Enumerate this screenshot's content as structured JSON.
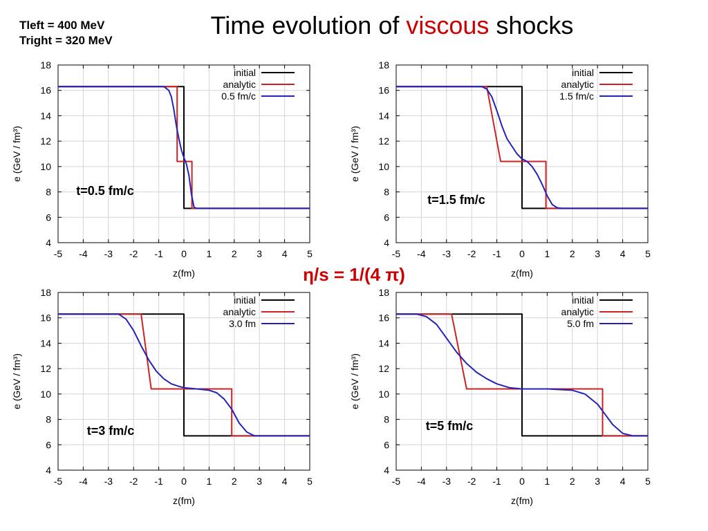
{
  "header": {
    "params": [
      "Tleft = 400 MeV",
      "Tright = 320 MeV"
    ],
    "title_prefix": "Time evolution of ",
    "title_highlight": "viscous",
    "title_suffix": " shocks",
    "ratio_label": "η/s = 1/(4 π)"
  },
  "colors": {
    "initial": "#000000",
    "analytic": "#cc2222",
    "simulation": "#2222bb",
    "highlight": "#cc0000"
  },
  "chart_data": [
    {
      "type": "line",
      "xlabel": "z(fm)",
      "ylabel": "e (GeV / fm³)",
      "xlim": [
        -5,
        5
      ],
      "ylim": [
        4,
        18
      ],
      "xticks": [
        -5,
        -4,
        -3,
        -2,
        -1,
        0,
        1,
        2,
        3,
        4,
        5
      ],
      "yticks": [
        4,
        6,
        8,
        10,
        12,
        14,
        16,
        18
      ],
      "annotation": "t=0.5 fm/c",
      "legend_position": "top-right",
      "series": [
        {
          "name": "initial",
          "x": [
            -5,
            0,
            0,
            5
          ],
          "y": [
            16.3,
            16.3,
            6.7,
            6.7
          ]
        },
        {
          "name": "analytic",
          "x": [
            -5,
            -0.27,
            -0.27,
            0.32,
            0.32,
            5
          ],
          "y": [
            16.3,
            16.3,
            10.4,
            10.4,
            6.7,
            6.7
          ]
        },
        {
          "name": "0.5 fm/c",
          "x": [
            -5,
            -0.8,
            -0.6,
            -0.5,
            -0.4,
            -0.3,
            -0.2,
            -0.1,
            0,
            0.1,
            0.2,
            0.3,
            0.4,
            0.5,
            5
          ],
          "y": [
            16.3,
            16.3,
            16.0,
            15.5,
            14.5,
            13.2,
            12.2,
            11.3,
            10.7,
            10.2,
            9.3,
            7.8,
            6.8,
            6.7,
            6.7
          ]
        }
      ]
    },
    {
      "type": "line",
      "xlabel": "z(fm)",
      "ylabel": "e (GeV / fm³)",
      "xlim": [
        -5,
        5
      ],
      "ylim": [
        4,
        18
      ],
      "xticks": [
        -5,
        -4,
        -3,
        -2,
        -1,
        0,
        1,
        2,
        3,
        4,
        5
      ],
      "yticks": [
        4,
        6,
        8,
        10,
        12,
        14,
        16,
        18
      ],
      "annotation": "t=1.5 fm/c",
      "legend_position": "top-right",
      "series": [
        {
          "name": "initial",
          "x": [
            -5,
            0,
            0,
            5
          ],
          "y": [
            16.3,
            16.3,
            6.7,
            6.7
          ]
        },
        {
          "name": "analytic",
          "x": [
            -5,
            -1.4,
            -0.85,
            0.95,
            0.95,
            5
          ],
          "y": [
            16.3,
            16.3,
            10.4,
            10.4,
            6.7,
            6.7
          ]
        },
        {
          "name": "1.5 fm/c",
          "x": [
            -5,
            -1.6,
            -1.4,
            -1.2,
            -1.0,
            -0.8,
            -0.6,
            -0.4,
            -0.2,
            0,
            0.2,
            0.4,
            0.6,
            0.8,
            1.0,
            1.2,
            1.4,
            1.6,
            5
          ],
          "y": [
            16.3,
            16.3,
            16.1,
            15.5,
            14.4,
            13.2,
            12.2,
            11.6,
            11.0,
            10.6,
            10.4,
            10.0,
            9.4,
            8.6,
            7.7,
            7.0,
            6.75,
            6.7,
            6.7
          ]
        }
      ]
    },
    {
      "type": "line",
      "xlabel": "z(fm)",
      "ylabel": "e (GeV / fm³)",
      "xlim": [
        -5,
        5
      ],
      "ylim": [
        4,
        18
      ],
      "xticks": [
        -5,
        -4,
        -3,
        -2,
        -1,
        0,
        1,
        2,
        3,
        4,
        5
      ],
      "yticks": [
        4,
        6,
        8,
        10,
        12,
        14,
        16,
        18
      ],
      "annotation": "t=3 fm/c",
      "legend_position": "top-right",
      "series": [
        {
          "name": "initial",
          "x": [
            -5,
            0,
            0,
            5
          ],
          "y": [
            16.3,
            16.3,
            6.7,
            6.7
          ]
        },
        {
          "name": "analytic",
          "x": [
            -5,
            -1.7,
            -1.3,
            1.9,
            1.9,
            5
          ],
          "y": [
            16.3,
            16.3,
            10.4,
            10.4,
            6.7,
            6.7
          ]
        },
        {
          "name": "3.0 fm",
          "x": [
            -5,
            -2.6,
            -2.3,
            -2.0,
            -1.7,
            -1.4,
            -1.1,
            -0.8,
            -0.5,
            -0.2,
            0,
            0.5,
            1.0,
            1.3,
            1.6,
            1.9,
            2.2,
            2.5,
            2.8,
            5
          ],
          "y": [
            16.3,
            16.3,
            15.9,
            15.0,
            13.8,
            12.7,
            11.8,
            11.2,
            10.8,
            10.6,
            10.5,
            10.4,
            10.3,
            10.1,
            9.6,
            8.8,
            7.7,
            7.0,
            6.7,
            6.7
          ]
        }
      ]
    },
    {
      "type": "line",
      "xlabel": "z(fm)",
      "ylabel": "e (GeV / fm³)",
      "xlim": [
        -5,
        5
      ],
      "ylim": [
        4,
        18
      ],
      "xticks": [
        -5,
        -4,
        -3,
        -2,
        -1,
        0,
        1,
        2,
        3,
        4,
        5
      ],
      "yticks": [
        4,
        6,
        8,
        10,
        12,
        14,
        16,
        18
      ],
      "annotation": "t=5 fm/c",
      "legend_position": "top-right",
      "series": [
        {
          "name": "initial",
          "x": [
            -5,
            0,
            0,
            5
          ],
          "y": [
            16.3,
            16.3,
            6.7,
            6.7
          ]
        },
        {
          "name": "analytic",
          "x": [
            -5,
            -2.8,
            -2.2,
            3.2,
            3.2,
            5
          ],
          "y": [
            16.3,
            16.3,
            10.4,
            10.4,
            6.7,
            6.7
          ]
        },
        {
          "name": "5.0 fm",
          "x": [
            -5,
            -4.2,
            -3.8,
            -3.4,
            -3.0,
            -2.6,
            -2.2,
            -1.8,
            -1.4,
            -1.0,
            -0.5,
            0,
            1.0,
            2.0,
            2.5,
            3.0,
            3.3,
            3.6,
            4.0,
            4.4,
            5
          ],
          "y": [
            16.3,
            16.3,
            16.1,
            15.5,
            14.4,
            13.3,
            12.4,
            11.7,
            11.2,
            10.8,
            10.5,
            10.4,
            10.4,
            10.3,
            10.0,
            9.2,
            8.4,
            7.6,
            6.9,
            6.7,
            6.7
          ]
        }
      ]
    }
  ]
}
